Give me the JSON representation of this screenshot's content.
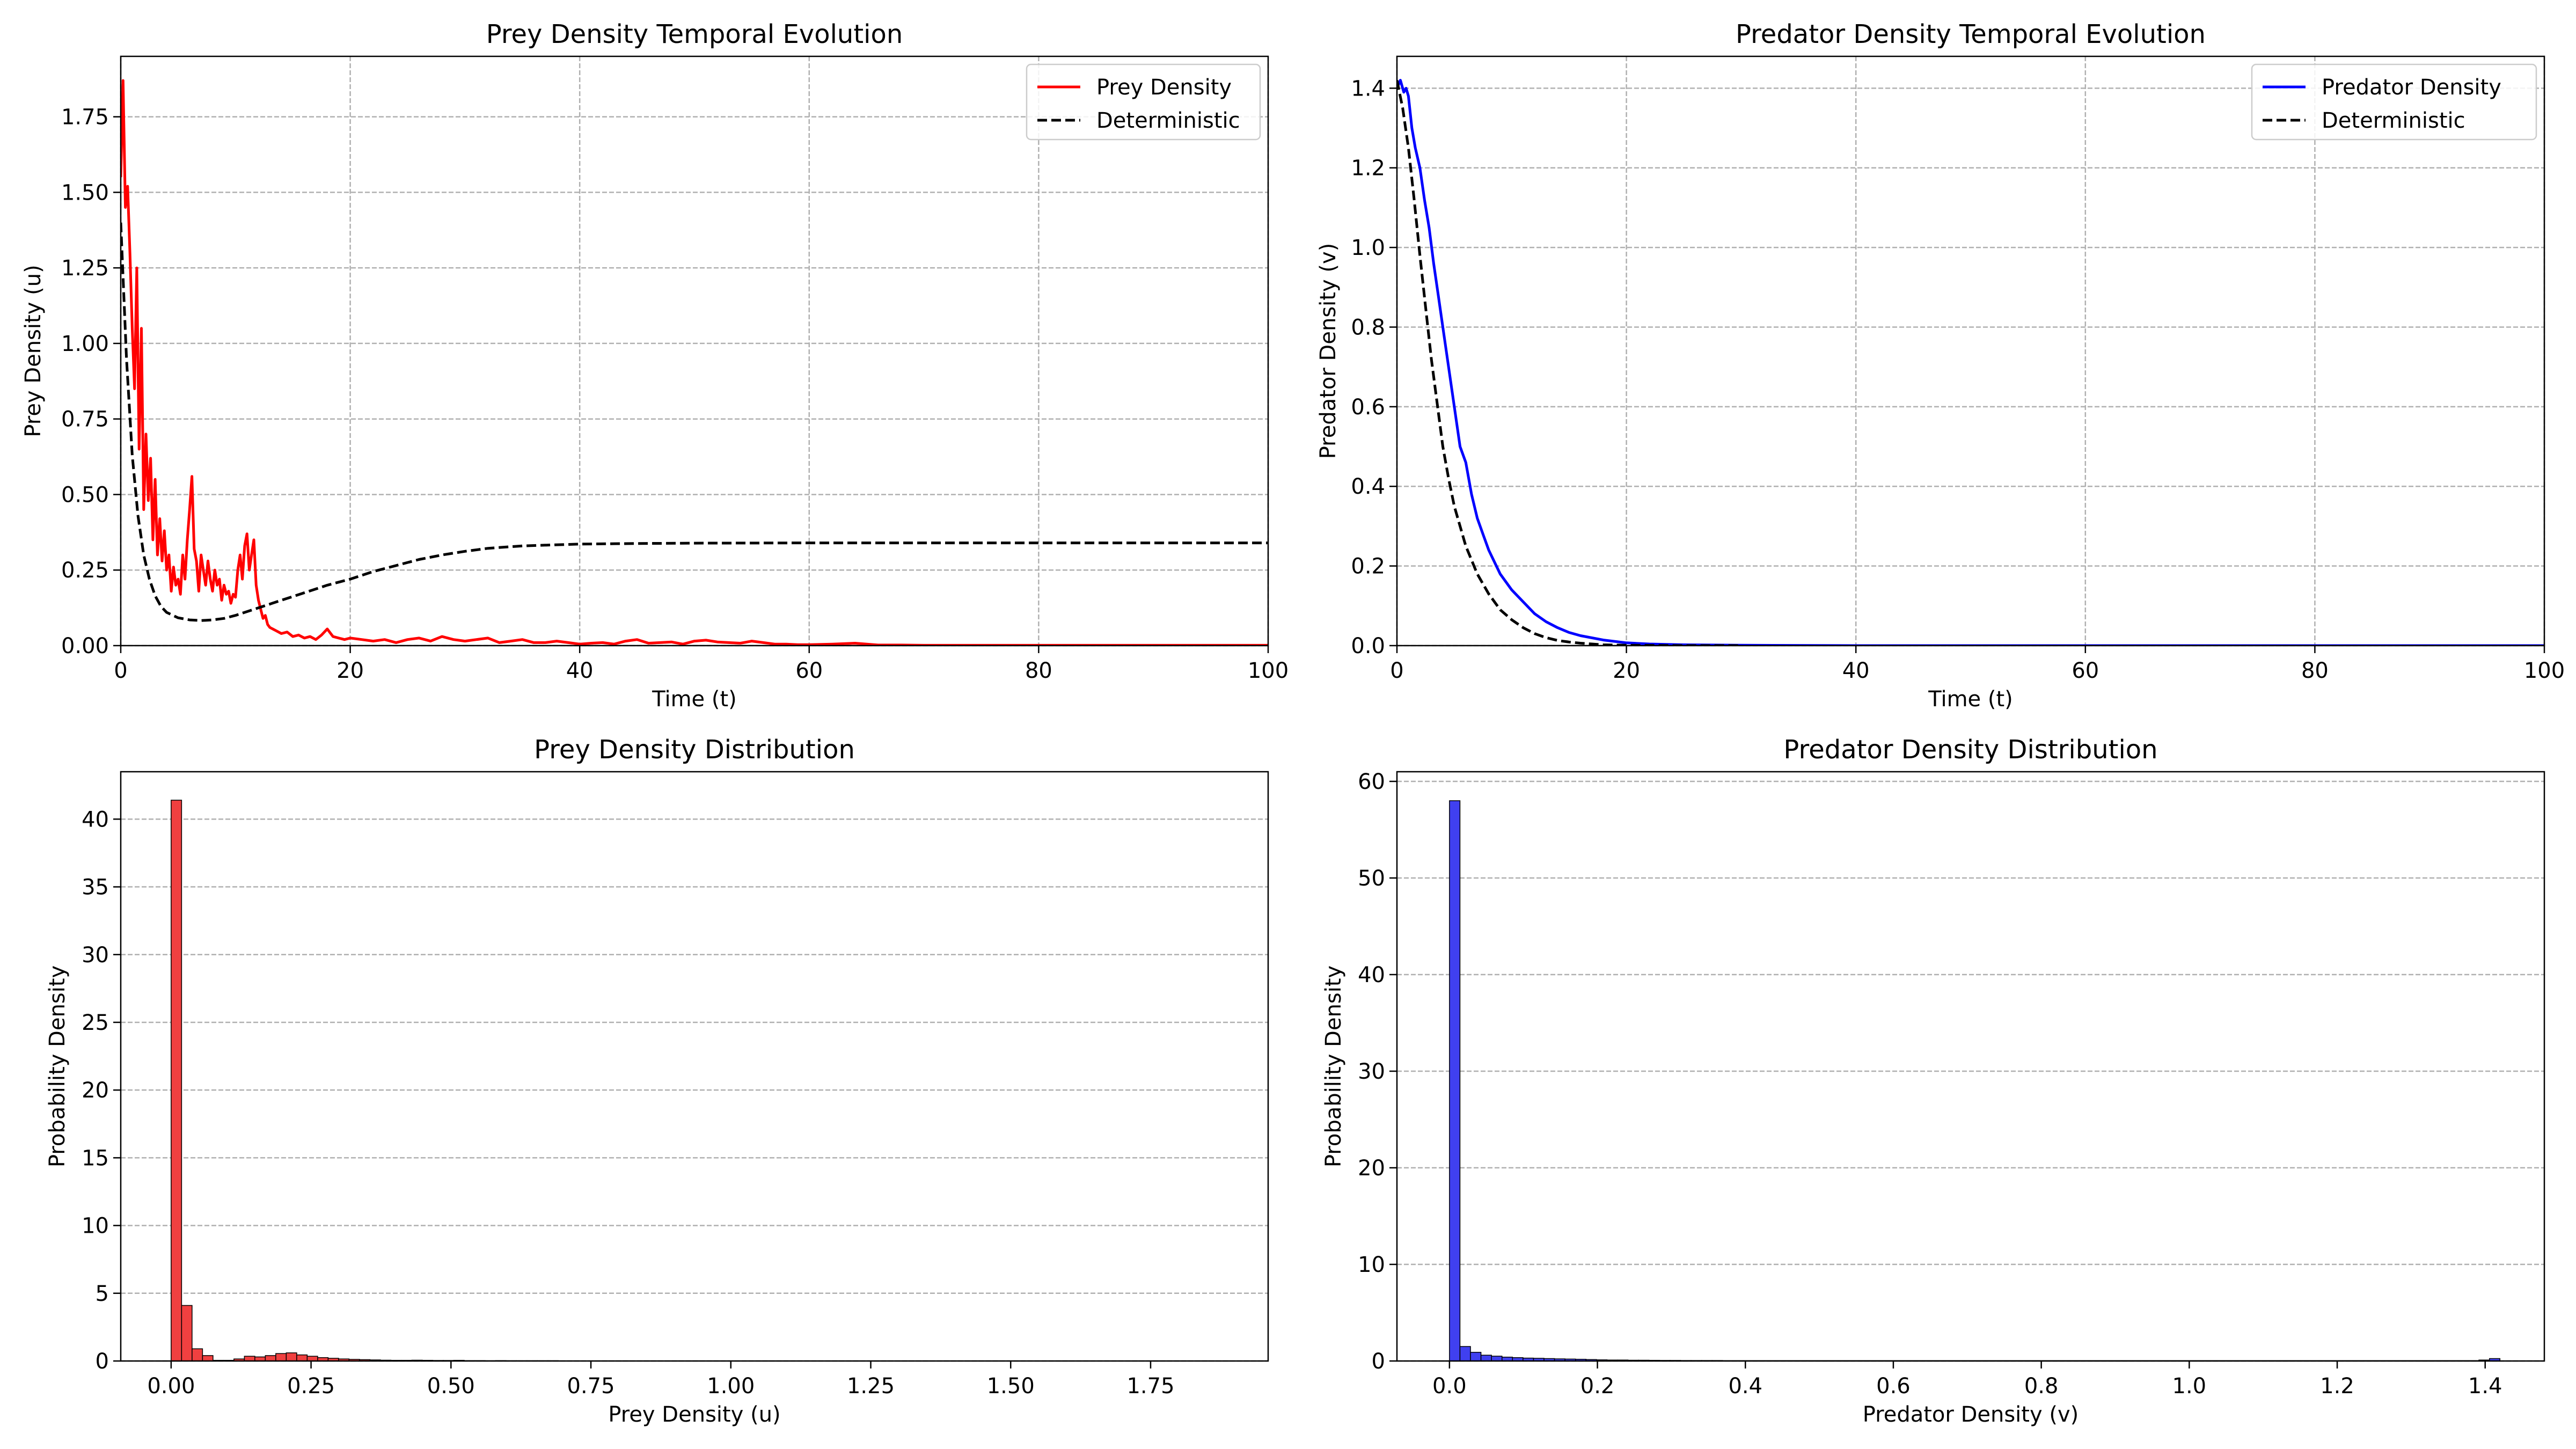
{
  "colors": {
    "prey": "#ff0000",
    "predator": "#0000ff",
    "deterministic": "#000000",
    "prey_hist_fill": "#f04040",
    "predator_hist_fill": "#4040f0",
    "grid": "#b0b0b0"
  },
  "chart_data": [
    {
      "id": "prey_time",
      "type": "line",
      "title": "Prey Density Temporal Evolution",
      "xlabel": "Time (t)",
      "ylabel": "Prey Density (u)",
      "xlim": [
        0,
        100
      ],
      "ylim": [
        0,
        1.95
      ],
      "xticks": [
        0,
        20,
        40,
        60,
        80,
        100
      ],
      "xtick_labels": [
        "0",
        "20",
        "40",
        "60",
        "80",
        "100"
      ],
      "yticks": [
        0,
        0.25,
        0.5,
        0.75,
        1.0,
        1.25,
        1.5,
        1.75
      ],
      "ytick_labels": [
        "0.00",
        "0.25",
        "0.50",
        "0.75",
        "1.00",
        "1.25",
        "1.50",
        "1.75"
      ],
      "grid": true,
      "legend_position": "top-right",
      "legend": [
        "Prey Density",
        "Deterministic"
      ],
      "series": [
        {
          "name": "Prey Density",
          "style": "solid",
          "x": [
            0,
            0.2,
            0.4,
            0.6,
            0.8,
            1.0,
            1.2,
            1.4,
            1.6,
            1.8,
            2.0,
            2.2,
            2.4,
            2.6,
            2.8,
            3.0,
            3.2,
            3.4,
            3.6,
            3.8,
            4.0,
            4.2,
            4.4,
            4.6,
            4.8,
            5.0,
            5.2,
            5.4,
            5.6,
            5.8,
            6.0,
            6.2,
            6.4,
            6.6,
            6.8,
            7.0,
            7.2,
            7.4,
            7.6,
            7.8,
            8.0,
            8.2,
            8.4,
            8.6,
            8.8,
            9.0,
            9.2,
            9.4,
            9.6,
            9.8,
            10.0,
            10.2,
            10.4,
            10.6,
            10.8,
            11.0,
            11.2,
            11.4,
            11.6,
            11.8,
            12.0,
            12.2,
            12.4,
            12.6,
            12.8,
            13.0,
            13.5,
            14.0,
            14.5,
            15.0,
            15.5,
            16.0,
            16.5,
            17.0,
            17.5,
            18.0,
            18.5,
            19.0,
            19.5,
            20.0,
            21,
            22,
            23,
            24,
            25,
            26,
            27,
            28,
            29,
            30,
            31,
            32,
            33,
            34,
            35,
            36,
            37,
            38,
            39,
            40,
            41,
            42,
            43,
            44,
            45,
            46,
            47,
            48,
            49,
            50,
            51,
            52,
            53,
            54,
            55,
            56,
            57,
            58,
            59,
            60,
            62,
            64,
            66,
            68,
            70,
            75,
            80,
            85,
            90,
            95,
            100
          ],
          "y": [
            1.55,
            1.87,
            1.45,
            1.52,
            1.3,
            1.05,
            0.85,
            1.25,
            0.65,
            1.05,
            0.45,
            0.7,
            0.48,
            0.62,
            0.35,
            0.55,
            0.3,
            0.42,
            0.28,
            0.38,
            0.25,
            0.3,
            0.18,
            0.26,
            0.2,
            0.22,
            0.17,
            0.3,
            0.22,
            0.35,
            0.45,
            0.56,
            0.32,
            0.28,
            0.18,
            0.3,
            0.25,
            0.2,
            0.28,
            0.22,
            0.18,
            0.25,
            0.2,
            0.22,
            0.15,
            0.2,
            0.17,
            0.18,
            0.14,
            0.17,
            0.16,
            0.25,
            0.3,
            0.22,
            0.33,
            0.37,
            0.25,
            0.3,
            0.35,
            0.2,
            0.15,
            0.12,
            0.09,
            0.1,
            0.07,
            0.06,
            0.05,
            0.04,
            0.045,
            0.03,
            0.035,
            0.025,
            0.03,
            0.02,
            0.035,
            0.055,
            0.03,
            0.025,
            0.02,
            0.025,
            0.02,
            0.015,
            0.02,
            0.01,
            0.02,
            0.025,
            0.015,
            0.03,
            0.02,
            0.015,
            0.02,
            0.025,
            0.01,
            0.015,
            0.02,
            0.01,
            0.01,
            0.015,
            0.01,
            0.005,
            0.008,
            0.01,
            0.005,
            0.015,
            0.02,
            0.008,
            0.01,
            0.012,
            0.005,
            0.015,
            0.018,
            0.012,
            0.01,
            0.008,
            0.015,
            0.01,
            0.005,
            0.005,
            0.003,
            0.003,
            0.005,
            0.008,
            0.002,
            0.002,
            0.001,
            0.001,
            0.001,
            0.001,
            0.001,
            0.001,
            0.001
          ]
        },
        {
          "name": "Deterministic",
          "style": "dashed",
          "x": [
            0,
            0.5,
            1.0,
            1.5,
            2.0,
            2.5,
            3.0,
            3.5,
            4.0,
            5.0,
            6.0,
            7.0,
            8.0,
            9.0,
            10.0,
            12.0,
            14.0,
            16.0,
            18.0,
            20.0,
            22.0,
            24.0,
            26.0,
            28.0,
            30.0,
            32.0,
            35.0,
            40.0,
            45.0,
            50.0,
            60.0,
            70.0,
            80.0,
            90.0,
            100.0
          ],
          "y": [
            1.4,
            0.95,
            0.63,
            0.43,
            0.3,
            0.22,
            0.165,
            0.13,
            0.11,
            0.092,
            0.085,
            0.083,
            0.085,
            0.09,
            0.1,
            0.125,
            0.15,
            0.175,
            0.2,
            0.22,
            0.245,
            0.265,
            0.285,
            0.3,
            0.312,
            0.322,
            0.33,
            0.336,
            0.338,
            0.339,
            0.34,
            0.34,
            0.34,
            0.34,
            0.34
          ]
        }
      ]
    },
    {
      "id": "predator_time",
      "type": "line",
      "title": "Predator Density Temporal Evolution",
      "xlabel": "Time (t)",
      "ylabel": "Predator Density (v)",
      "xlim": [
        0,
        100
      ],
      "ylim": [
        0,
        1.48
      ],
      "xticks": [
        0,
        20,
        40,
        60,
        80,
        100
      ],
      "xtick_labels": [
        "0",
        "20",
        "40",
        "60",
        "80",
        "100"
      ],
      "yticks": [
        0,
        0.2,
        0.4,
        0.6,
        0.8,
        1.0,
        1.2,
        1.4
      ],
      "ytick_labels": [
        "0.0",
        "0.2",
        "0.4",
        "0.6",
        "0.8",
        "1.0",
        "1.2",
        "1.4"
      ],
      "grid": true,
      "legend_position": "top-right",
      "legend": [
        "Predator Density",
        "Deterministic"
      ],
      "series": [
        {
          "name": "Predator Density",
          "style": "solid",
          "x": [
            0,
            0.3,
            0.6,
            0.8,
            1.0,
            1.3,
            1.6,
            2.0,
            2.4,
            2.8,
            3.2,
            3.6,
            4.0,
            4.5,
            5.0,
            5.5,
            6.0,
            6.5,
            7.0,
            7.5,
            8.0,
            9.0,
            10.0,
            11.0,
            12.0,
            13.0,
            14.0,
            15.0,
            16.0,
            18.0,
            20.0,
            22.0,
            25.0,
            30.0,
            40.0,
            60.0,
            100.0
          ],
          "y": [
            1.4,
            1.42,
            1.39,
            1.4,
            1.38,
            1.3,
            1.25,
            1.2,
            1.12,
            1.05,
            0.96,
            0.88,
            0.8,
            0.7,
            0.6,
            0.5,
            0.46,
            0.38,
            0.32,
            0.28,
            0.24,
            0.18,
            0.14,
            0.11,
            0.08,
            0.06,
            0.045,
            0.033,
            0.025,
            0.014,
            0.007,
            0.004,
            0.002,
            0.001,
            0.0,
            0.0,
            0.0
          ]
        },
        {
          "name": "Deterministic",
          "style": "dashed",
          "x": [
            0,
            0.5,
            1.0,
            1.5,
            2.0,
            2.5,
            3.0,
            3.5,
            4.0,
            4.5,
            5.0,
            6.0,
            7.0,
            8.0,
            9.0,
            10.0,
            11.0,
            12.0,
            13.0,
            14.0,
            15.0,
            16.0,
            17.0,
            18.0,
            20.0,
            25.0,
            30.0
          ],
          "y": [
            1.42,
            1.35,
            1.25,
            1.12,
            0.98,
            0.85,
            0.72,
            0.61,
            0.5,
            0.42,
            0.35,
            0.25,
            0.18,
            0.13,
            0.09,
            0.065,
            0.045,
            0.03,
            0.02,
            0.013,
            0.009,
            0.006,
            0.004,
            0.002,
            0.001,
            0.0,
            0.0
          ]
        }
      ]
    },
    {
      "id": "prey_hist",
      "type": "bar",
      "title": "Prey Density Distribution",
      "xlabel": "Prey Density (u)",
      "ylabel": "Probability Density",
      "xlim": [
        -0.09,
        1.96
      ],
      "ylim": [
        0,
        43.5
      ],
      "xticks": [
        0,
        0.25,
        0.5,
        0.75,
        1.0,
        1.25,
        1.5,
        1.75
      ],
      "xtick_labels": [
        "0.00",
        "0.25",
        "0.50",
        "0.75",
        "1.00",
        "1.25",
        "1.50",
        "1.75"
      ],
      "yticks": [
        0,
        5,
        10,
        15,
        20,
        25,
        30,
        35,
        40
      ],
      "ytick_labels": [
        "0",
        "5",
        "10",
        "15",
        "20",
        "25",
        "30",
        "35",
        "40"
      ],
      "grid": true,
      "bin_width": 0.0187,
      "bin_start": 0.0,
      "values": [
        41.4,
        4.1,
        0.9,
        0.4,
        0.05,
        0.05,
        0.15,
        0.35,
        0.3,
        0.4,
        0.55,
        0.6,
        0.45,
        0.35,
        0.25,
        0.2,
        0.15,
        0.12,
        0.1,
        0.08,
        0.06,
        0.05,
        0.05,
        0.06,
        0.05,
        0.04,
        0.04,
        0.05,
        0.03,
        0.03,
        0.02,
        0.03,
        0.02,
        0.02,
        0.02,
        0.02,
        0.02,
        0.01,
        0.01,
        0.01,
        0.01,
        0.01,
        0.01,
        0.01,
        0.01,
        0.01,
        0.01,
        0.01,
        0.01,
        0.01,
        0.01,
        0.01,
        0.01,
        0.01,
        0.01,
        0.01,
        0.01,
        0.01,
        0.01,
        0.01,
        0.01,
        0.01,
        0.01,
        0.01,
        0.01,
        0.01,
        0.01,
        0.01,
        0.01,
        0.01,
        0.01,
        0.01,
        0.01,
        0.01,
        0.01,
        0.01,
        0.01,
        0.01,
        0.01,
        0.01,
        0.01,
        0.01,
        0.01,
        0.01,
        0.01,
        0.01,
        0.01,
        0.01,
        0.01,
        0.01,
        0.01,
        0.01,
        0.01,
        0.01,
        0.01,
        0.01,
        0.01,
        0.01,
        0.01,
        0.01
      ]
    },
    {
      "id": "predator_hist",
      "type": "bar",
      "title": "Predator Density Distribution",
      "xlabel": "Predator Density (v)",
      "ylabel": "Probability Density",
      "xlim": [
        -0.071,
        1.48
      ],
      "ylim": [
        0,
        61
      ],
      "xticks": [
        0,
        0.2,
        0.4,
        0.6,
        0.8,
        1.0,
        1.2,
        1.4
      ],
      "xtick_labels": [
        "0.0",
        "0.2",
        "0.4",
        "0.6",
        "0.8",
        "1.0",
        "1.2",
        "1.4"
      ],
      "yticks": [
        0,
        10,
        20,
        30,
        40,
        50,
        60
      ],
      "ytick_labels": [
        "0",
        "10",
        "20",
        "30",
        "40",
        "50",
        "60"
      ],
      "grid": true,
      "bin_width": 0.0142,
      "bin_start": 0.0,
      "values": [
        58.0,
        1.5,
        0.9,
        0.6,
        0.5,
        0.4,
        0.35,
        0.3,
        0.28,
        0.25,
        0.22,
        0.2,
        0.18,
        0.15,
        0.12,
        0.1,
        0.1,
        0.08,
        0.08,
        0.07,
        0.06,
        0.06,
        0.05,
        0.05,
        0.05,
        0.05,
        0.04,
        0.04,
        0.04,
        0.04,
        0.04,
        0.04,
        0.04,
        0.04,
        0.04,
        0.04,
        0.04,
        0.04,
        0.04,
        0.04,
        0.04,
        0.04,
        0.04,
        0.04,
        0.04,
        0.04,
        0.04,
        0.04,
        0.04,
        0.04,
        0.04,
        0.04,
        0.04,
        0.04,
        0.04,
        0.04,
        0.04,
        0.04,
        0.04,
        0.04,
        0.04,
        0.04,
        0.04,
        0.04,
        0.04,
        0.04,
        0.04,
        0.04,
        0.04,
        0.04,
        0.04,
        0.04,
        0.04,
        0.04,
        0.04,
        0.04,
        0.04,
        0.04,
        0.04,
        0.04,
        0.04,
        0.04,
        0.04,
        0.04,
        0.04,
        0.04,
        0.04,
        0.04,
        0.04,
        0.04,
        0.04,
        0.04,
        0.04,
        0.04,
        0.04,
        0.04,
        0.04,
        0.04,
        0.1,
        0.25
      ]
    }
  ]
}
